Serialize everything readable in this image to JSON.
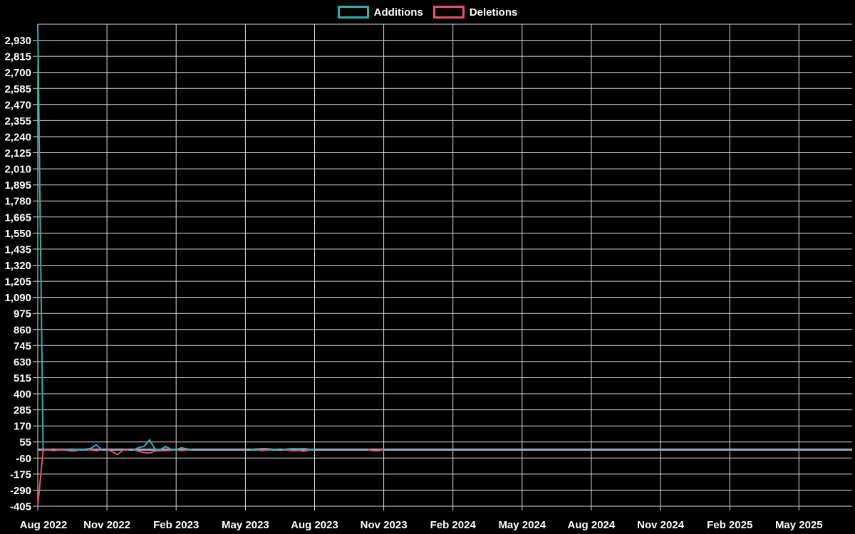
{
  "legend": {
    "items": [
      {
        "label": "Additions",
        "color": "#2fb0aa"
      },
      {
        "label": "Deletions",
        "color": "#e8506e"
      }
    ]
  },
  "chart_data": {
    "type": "line",
    "title": "",
    "background": "#000000",
    "grid": true,
    "gridline_color": "#dcdcdc",
    "zero_line_color": "#95acba",
    "legend_position": "top-center",
    "x_axis": {
      "labels": [
        "Aug 2022",
        "Nov 2022",
        "Feb 2023",
        "May 2023",
        "Aug 2023",
        "Nov 2023",
        "Feb 2024",
        "May 2024",
        "Aug 2024",
        "Nov 2024",
        "Feb 2025",
        "May 2025"
      ],
      "weeks_per_label": 13
    },
    "y_axis": {
      "min": -405,
      "max": 3045,
      "step": 115,
      "top_tick_unlabeled": 3045,
      "ticks": [
        {
          "value": 2930,
          "label": "2,930"
        },
        {
          "value": 2815,
          "label": "2,815"
        },
        {
          "value": 2700,
          "label": "2,700"
        },
        {
          "value": 2585,
          "label": "2,585"
        },
        {
          "value": 2470,
          "label": "2,470"
        },
        {
          "value": 2355,
          "label": "2,355"
        },
        {
          "value": 2240,
          "label": "2,240"
        },
        {
          "value": 2125,
          "label": "2,125"
        },
        {
          "value": 2010,
          "label": "2,010"
        },
        {
          "value": 1895,
          "label": "1,895"
        },
        {
          "value": 1780,
          "label": "1,780"
        },
        {
          "value": 1665,
          "label": "1,665"
        },
        {
          "value": 1550,
          "label": "1,550"
        },
        {
          "value": 1435,
          "label": "1,435"
        },
        {
          "value": 1320,
          "label": "1,320"
        },
        {
          "value": 1205,
          "label": "1,205"
        },
        {
          "value": 1090,
          "label": "1,090"
        },
        {
          "value": 975,
          "label": "975"
        },
        {
          "value": 860,
          "label": "860"
        },
        {
          "value": 745,
          "label": "745"
        },
        {
          "value": 630,
          "label": "630"
        },
        {
          "value": 515,
          "label": "515"
        },
        {
          "value": 400,
          "label": "400"
        },
        {
          "value": 285,
          "label": "285"
        },
        {
          "value": 170,
          "label": "170"
        },
        {
          "value": 55,
          "label": "55"
        },
        {
          "value": -60,
          "label": "-60"
        },
        {
          "value": -175,
          "label": "-175"
        },
        {
          "value": -290,
          "label": "-290"
        },
        {
          "value": -405,
          "label": "-405"
        }
      ]
    },
    "weeks": 154,
    "series": [
      {
        "name": "Additions",
        "color": "#2fb0aa"
      },
      {
        "name": "Deletions",
        "color": "#e8506e"
      }
    ],
    "nonzero_points": [
      {
        "week": 0,
        "additions": 3045,
        "deletions": -405
      },
      {
        "week": 1,
        "additions": 0,
        "deletions": -5
      },
      {
        "week": 3,
        "additions": 0,
        "deletions": -8
      },
      {
        "week": 5,
        "additions": 0,
        "deletions": -3
      },
      {
        "week": 6,
        "additions": 4,
        "deletions": -8
      },
      {
        "week": 7,
        "additions": 3,
        "deletions": -10
      },
      {
        "week": 9,
        "additions": 4,
        "deletions": 0
      },
      {
        "week": 10,
        "additions": 10,
        "deletions": -3
      },
      {
        "week": 11,
        "additions": 35,
        "deletions": -8
      },
      {
        "week": 14,
        "additions": 0,
        "deletions": -15
      },
      {
        "week": 15,
        "additions": 0,
        "deletions": -35
      },
      {
        "week": 16,
        "additions": 0,
        "deletions": -5
      },
      {
        "week": 19,
        "additions": 15,
        "deletions": -12
      },
      {
        "week": 20,
        "additions": 24,
        "deletions": -20
      },
      {
        "week": 21,
        "additions": 70,
        "deletions": -25
      },
      {
        "week": 22,
        "additions": 5,
        "deletions": -10
      },
      {
        "week": 23,
        "additions": 0,
        "deletions": -8
      },
      {
        "week": 24,
        "additions": 22,
        "deletions": -8
      },
      {
        "week": 25,
        "additions": 3,
        "deletions": -5
      },
      {
        "week": 27,
        "additions": 14,
        "deletions": -8
      },
      {
        "week": 28,
        "additions": 6,
        "deletions": -3
      },
      {
        "week": 41,
        "additions": 5,
        "deletions": 0
      },
      {
        "week": 42,
        "additions": 8,
        "deletions": -6
      },
      {
        "week": 43,
        "additions": 8,
        "deletions": -4
      },
      {
        "week": 44,
        "additions": 4,
        "deletions": 0
      },
      {
        "week": 47,
        "additions": 5,
        "deletions": -4
      },
      {
        "week": 48,
        "additions": 8,
        "deletions": -8
      },
      {
        "week": 49,
        "additions": 6,
        "deletions": -6
      },
      {
        "week": 50,
        "additions": 8,
        "deletions": -12
      },
      {
        "week": 51,
        "additions": 3,
        "deletions": -3
      },
      {
        "week": 63,
        "additions": 0,
        "deletions": -8
      },
      {
        "week": 64,
        "additions": 0,
        "deletions": -8
      }
    ]
  }
}
